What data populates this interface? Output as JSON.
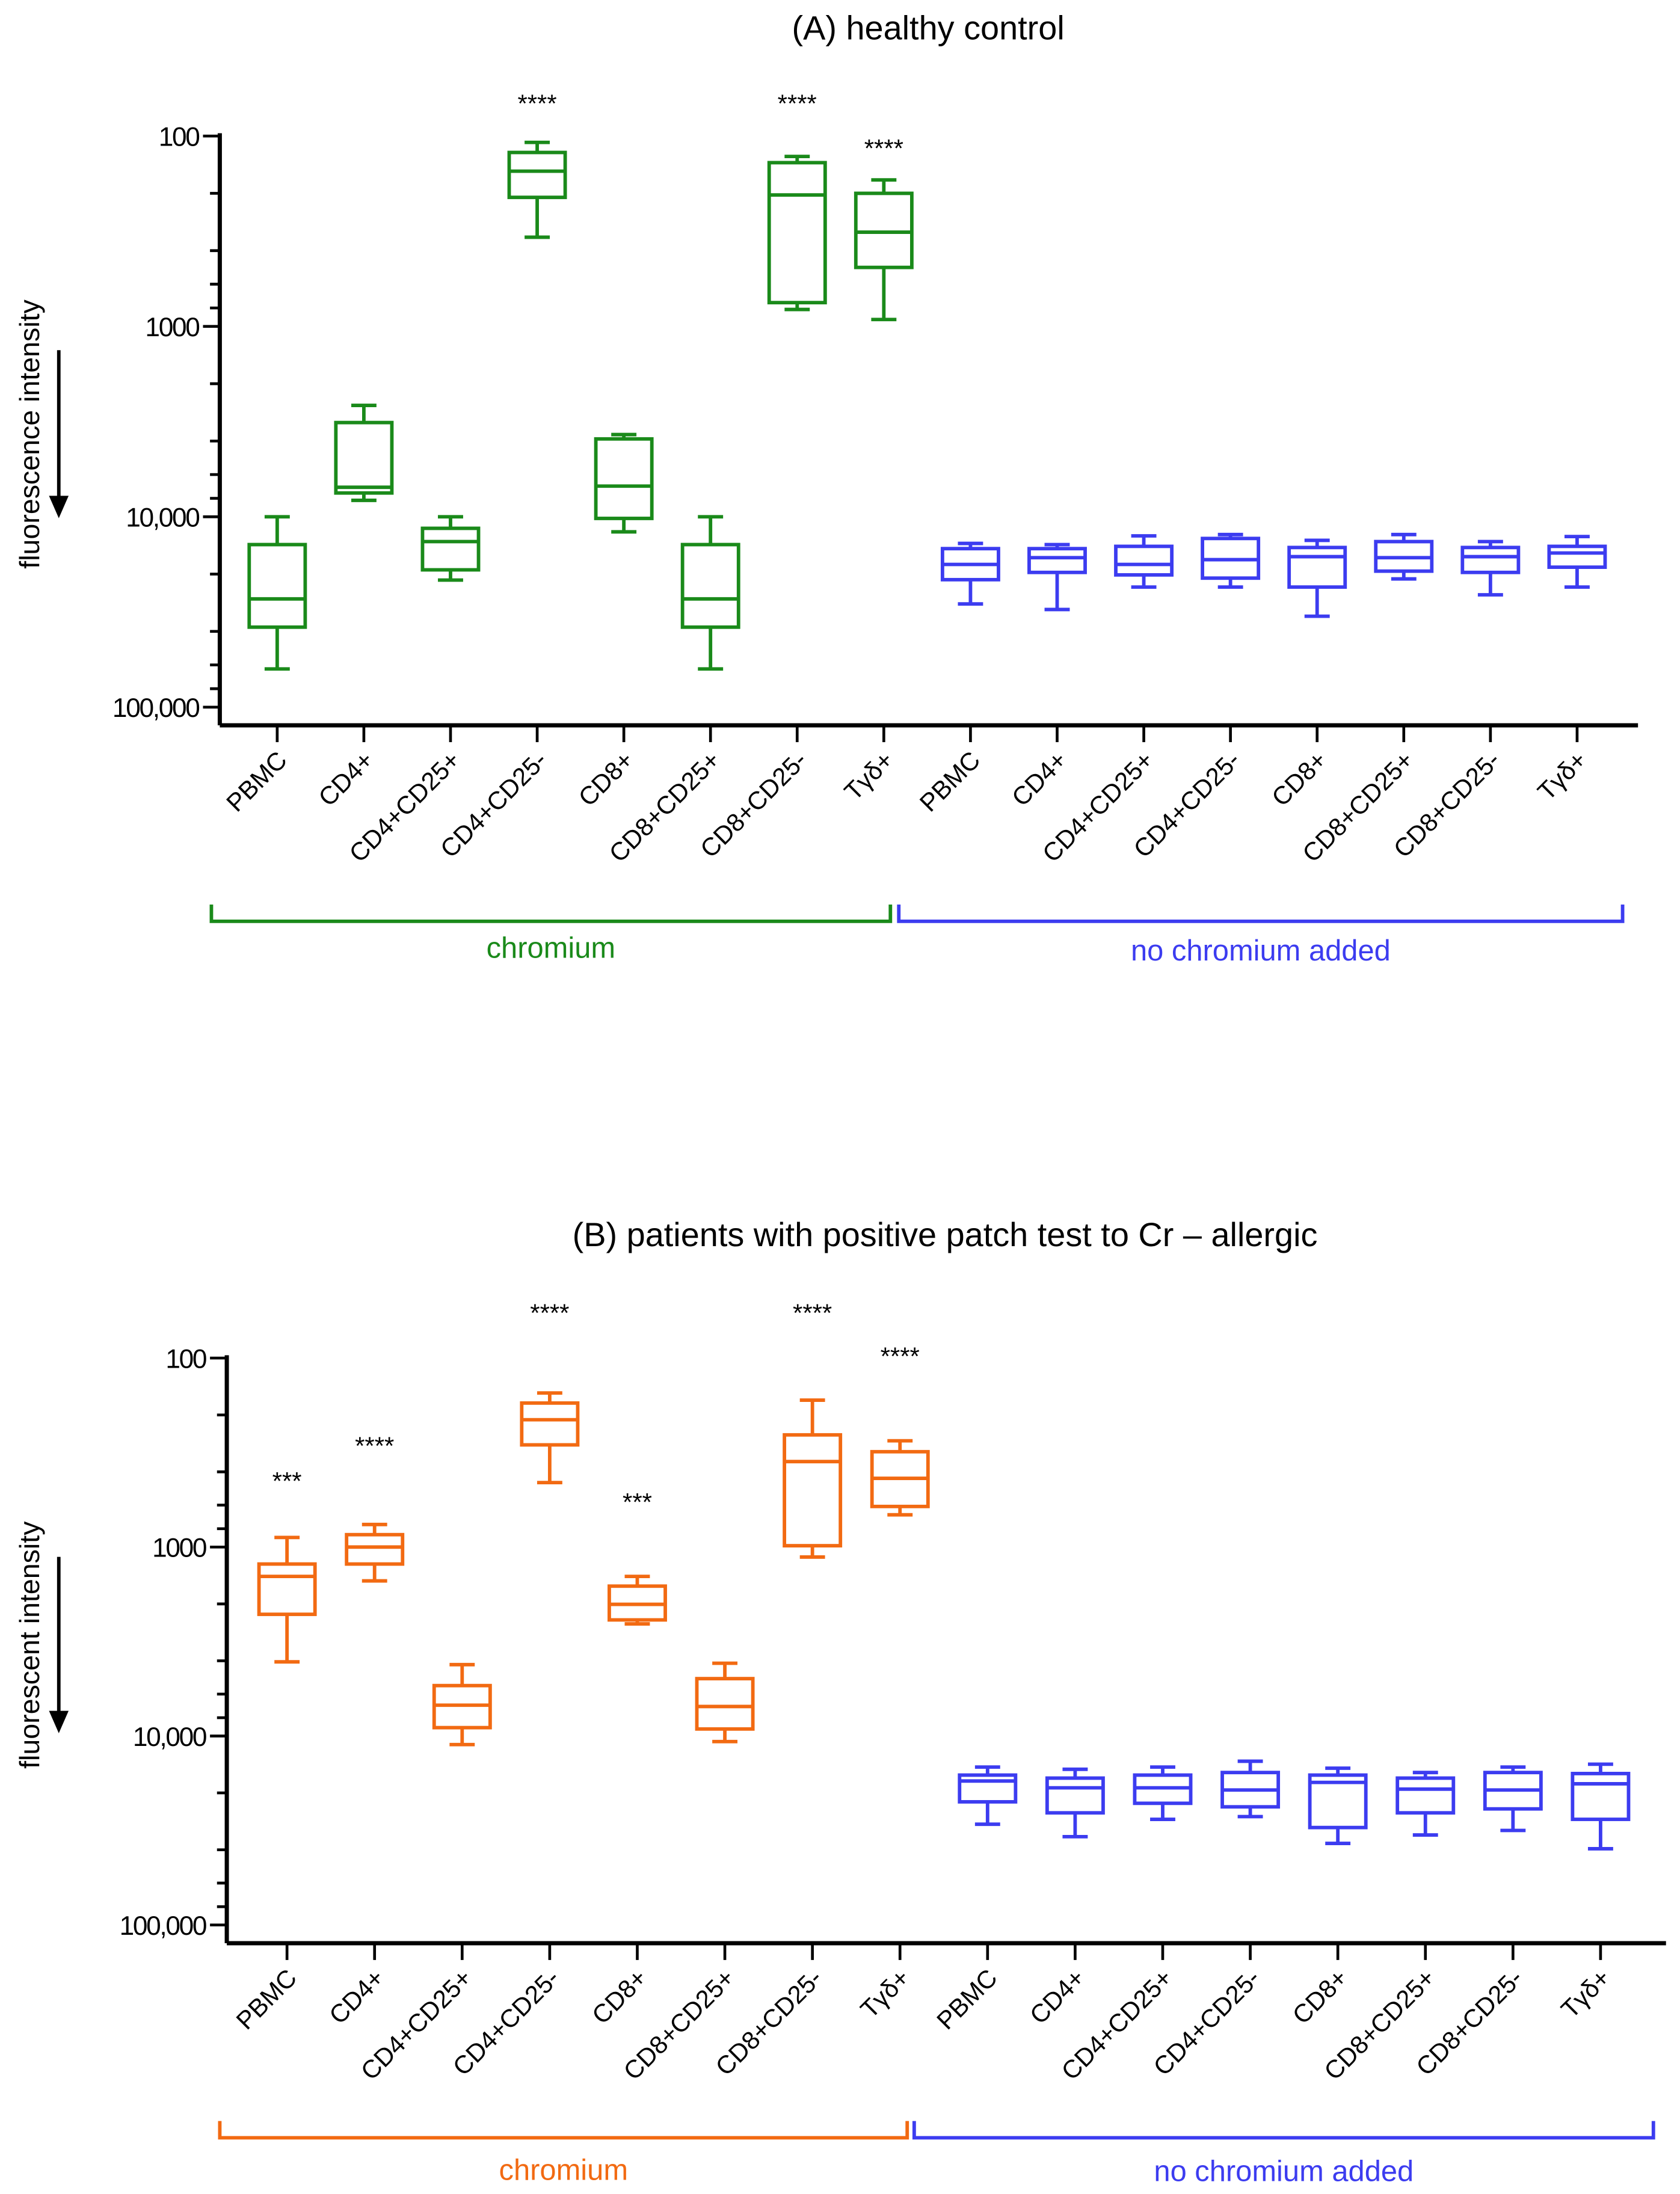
{
  "colors": {
    "chromium_A": "#1a8a1a",
    "chromium_B": "#f26a12",
    "control": "#3c3cf0"
  },
  "chart_data": [
    {
      "type": "box",
      "title": "(A) healthy control",
      "ylabel": "fluorescence intensity",
      "yscale": "log",
      "yinverted": true,
      "ylim": [
        100,
        100000
      ],
      "yticks": [
        100,
        1000,
        10000,
        100000
      ],
      "ytick_labels": [
        "100",
        "1000",
        "10,000",
        "100,000"
      ],
      "categories": [
        "PBMC",
        "CD4+",
        "CD4+CD25+",
        "CD4+CD25-",
        "CD8+",
        "CD8+CD25+",
        "CD8+CD25-",
        "Tγδ+",
        "PBMC",
        "CD4+",
        "CD4+CD25+",
        "CD4+CD25-",
        "CD8+",
        "CD8+CD25+",
        "CD8+CD25-",
        "Tγδ+"
      ],
      "groups": [
        {
          "name": "chromium",
          "color_key": "chromium_A",
          "from": 0,
          "to": 7
        },
        {
          "name": "no chromium added",
          "color_key": "control",
          "from": 8,
          "to": 15
        }
      ],
      "box_stats_order": [
        "whisker_low",
        "q_low",
        "median",
        "q_high",
        "whisker_high"
      ],
      "boxes": [
        [
          10000,
          14000,
          27000,
          38000,
          63000
        ],
        [
          2600,
          3200,
          7000,
          7500,
          8200
        ],
        [
          10000,
          11500,
          13500,
          19000,
          21500
        ],
        [
          108,
          122,
          153,
          210,
          340
        ],
        [
          3700,
          3900,
          6900,
          10200,
          12000
        ],
        [
          10000,
          14000,
          27000,
          38000,
          63000
        ],
        [
          128,
          138,
          204,
          750,
          815
        ],
        [
          170,
          200,
          320,
          490,
          920
        ],
        [
          13800,
          14700,
          17800,
          21400,
          28700
        ],
        [
          14000,
          14700,
          16400,
          19600,
          30700
        ],
        [
          12600,
          14300,
          17800,
          20200,
          23400
        ],
        [
          12400,
          13000,
          16800,
          21000,
          23400
        ],
        [
          13300,
          14500,
          16200,
          23400,
          33300
        ],
        [
          12400,
          13500,
          16400,
          19300,
          21200
        ],
        [
          13500,
          14500,
          16200,
          19600,
          25700
        ],
        [
          12700,
          14300,
          15500,
          18400,
          23400
        ]
      ],
      "significance": [
        "",
        "",
        "",
        "****",
        "",
        "",
        "****",
        "****",
        "",
        "",
        "",
        "",
        "",
        "",
        "",
        ""
      ]
    },
    {
      "type": "box",
      "title": "(B) patients with positive patch test to Cr – allergic",
      "ylabel": "fluorescent intensity",
      "yscale": "log",
      "yinverted": true,
      "ylim": [
        100,
        100000
      ],
      "yticks": [
        100,
        1000,
        10000,
        100000
      ],
      "ytick_labels": [
        "100",
        "1000",
        "10,000",
        "100,000"
      ],
      "categories": [
        "PBMC",
        "CD4+",
        "CD4+CD25+",
        "CD4+CD25-",
        "CD8+",
        "CD8+CD25+",
        "CD8+CD25-",
        "Tγδ+",
        "PBMC",
        "CD4+",
        "CD4+CD25+",
        "CD4+CD25-",
        "CD8+",
        "CD8+CD25+",
        "CD8+CD25-",
        "Tγδ+"
      ],
      "groups": [
        {
          "name": "chromium",
          "color_key": "chromium_B",
          "from": 0,
          "to": 7
        },
        {
          "name": "no chromium added",
          "color_key": "control",
          "from": 8,
          "to": 15
        }
      ],
      "box_stats_order": [
        "whisker_low",
        "q_low",
        "median",
        "q_high",
        "whisker_high"
      ],
      "boxes": [
        [
          890,
          1230,
          1430,
          2270,
          4050
        ],
        [
          760,
          860,
          1000,
          1230,
          1510
        ],
        [
          4190,
          5410,
          6870,
          9030,
          11100
        ],
        [
          153,
          173,
          212,
          288,
          456
        ],
        [
          1430,
          1610,
          2010,
          2430,
          2550
        ],
        [
          4120,
          4970,
          6980,
          9180,
          10700
        ],
        [
          167,
          255,
          353,
          984,
          1130
        ],
        [
          274,
          313,
          433,
          610,
          675
        ],
        [
          14600,
          16100,
          17300,
          22300,
          29300
        ],
        [
          15000,
          16700,
          18800,
          25500,
          34100
        ],
        [
          14600,
          16100,
          18800,
          22700,
          27600
        ],
        [
          13600,
          15600,
          19300,
          23700,
          26700
        ],
        [
          14800,
          16100,
          17600,
          30500,
          37000
        ],
        [
          15600,
          16700,
          19100,
          25500,
          33400
        ],
        [
          14600,
          15600,
          19300,
          24300,
          31600
        ],
        [
          14100,
          15800,
          17900,
          27600,
          39500
        ]
      ],
      "significance": [
        "***",
        "****",
        "",
        "****",
        "***",
        "",
        "****",
        "****",
        "",
        "",
        "",
        "",
        "",
        "",
        "",
        ""
      ]
    }
  ]
}
